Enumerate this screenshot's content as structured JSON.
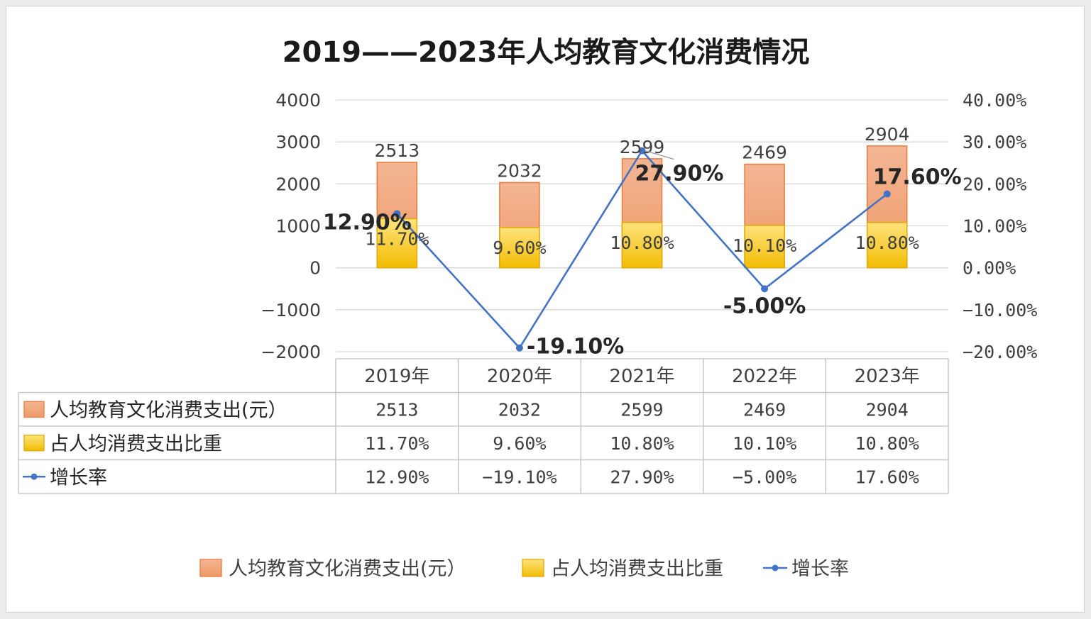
{
  "chart_data": {
    "type": "bar",
    "title": "2019——2023年人均教育文化消费情况",
    "categories": [
      "2019年",
      "2020年",
      "2021年",
      "2022年",
      "2023年"
    ],
    "series": [
      {
        "name": "人均教育文化消费支出(元）",
        "type": "bar",
        "axis": "left",
        "values": [
          2513,
          2032,
          2599,
          2469,
          2904
        ],
        "labels": [
          "2513",
          "2032",
          "2599",
          "2469",
          "2904"
        ]
      },
      {
        "name": "占人均消费支出比重",
        "type": "bar",
        "axis": "left",
        "values_percent": [
          11.7,
          9.6,
          10.8,
          10.1,
          10.8
        ],
        "labels": [
          "11.70%",
          "9.60%",
          "10.80%",
          "10.10%",
          "10.80%"
        ]
      },
      {
        "name": "增长率",
        "type": "line",
        "axis": "right",
        "values_percent": [
          12.9,
          -19.1,
          27.9,
          -5.0,
          17.6
        ],
        "labels": [
          "12.90%",
          "-19.10%",
          "27.90%",
          "-5.00%",
          "17.60%"
        ]
      }
    ],
    "y_left": {
      "range": [
        -2000,
        4000
      ],
      "ticks": [
        4000,
        3000,
        2000,
        1000,
        0,
        -1000,
        -2000
      ],
      "tick_labels": [
        "4000",
        "3000",
        "2000",
        "1000",
        "0",
        "−1000",
        "−2000"
      ]
    },
    "y_right": {
      "range_percent": [
        -20,
        40
      ],
      "ticks": [
        40,
        30,
        20,
        10,
        0,
        -10,
        -20
      ],
      "tick_labels": [
        "40.00%",
        "30.00%",
        "20.00%",
        "10.00%",
        "0.00%",
        "−10.00%",
        "−20.00%"
      ]
    },
    "data_table": {
      "row_labels": [
        "人均教育文化消费支出(元）",
        "占人均消费支出比重",
        "增长率"
      ],
      "rows": [
        [
          "2513",
          "2032",
          "2599",
          "2469",
          "2904"
        ],
        [
          "11.70%",
          "9.60%",
          "10.80%",
          "10.10%",
          "10.80%"
        ],
        [
          "12.90%",
          "−19.10%",
          "27.90%",
          "−5.00%",
          "17.60%"
        ]
      ]
    },
    "legend": {
      "placement": "bottom",
      "items": [
        "人均教育文化消费支出(元）",
        "占人均消费支出比重",
        "增长率"
      ]
    },
    "grid": true,
    "colors": {
      "spending_bar_top": "#f3b593",
      "spending_bar_bottom": "#f09a6a",
      "spending_bar_border": "#ea7a3c",
      "share_bar_top": "#ffe27a",
      "share_bar_bottom": "#f2bd05",
      "share_bar_border": "#e0aa00",
      "rate_line": "#4472c4",
      "grid": "#d9d9d9",
      "table_border": "#bfbfbf"
    }
  }
}
